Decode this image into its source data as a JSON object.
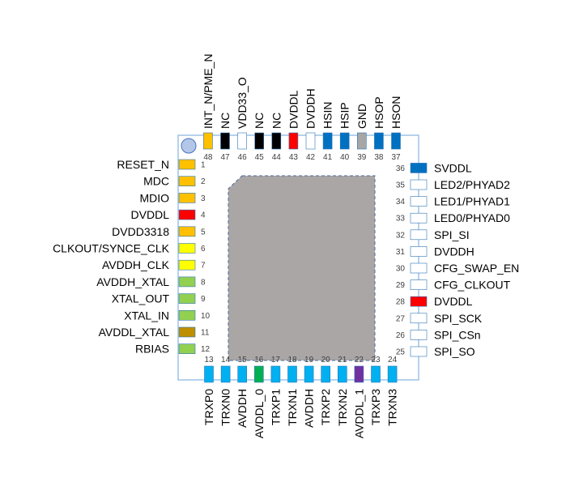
{
  "colors": {
    "package_border": "#9dc3e6",
    "die": "#aaa6a6",
    "die_border": "#4a6a96",
    "dot": "#b4c7e7",
    "pin_border": "#2e75b6",
    "label_text": "#000000",
    "number_text": "#404040"
  },
  "diagram": {
    "left_pins": [
      {
        "num": "1",
        "label": "RESET_N",
        "color": "#ffc000"
      },
      {
        "num": "2",
        "label": "MDC",
        "color": "#ffc000"
      },
      {
        "num": "3",
        "label": "MDIO",
        "color": "#ffc000"
      },
      {
        "num": "4",
        "label": "DVDDL",
        "color": "#ff0000"
      },
      {
        "num": "5",
        "label": "DVDD3318",
        "color": "#ffc000"
      },
      {
        "num": "6",
        "label": "CLKOUT/SYNCE_CLK",
        "color": "#ffff00"
      },
      {
        "num": "7",
        "label": "AVDDH_CLK",
        "color": "#ffff00"
      },
      {
        "num": "8",
        "label": "AVDDH_XTAL",
        "color": "#92d050"
      },
      {
        "num": "9",
        "label": "XTAL_OUT",
        "color": "#92d050"
      },
      {
        "num": "10",
        "label": "XTAL_IN",
        "color": "#92d050"
      },
      {
        "num": "11",
        "label": "AVDDL_XTAL",
        "color": "#bf8f00"
      },
      {
        "num": "12",
        "label": "RBIAS",
        "color": "#92d050"
      }
    ],
    "bottom_pins": [
      {
        "num": "13",
        "label": "TRXP0",
        "color": "#00b0f0"
      },
      {
        "num": "14",
        "label": "TRXN0",
        "color": "#00b0f0"
      },
      {
        "num": "15",
        "label": "AVDDH",
        "color": "#00b0f0"
      },
      {
        "num": "16",
        "label": "AVDDL_0",
        "color": "#00b050"
      },
      {
        "num": "17",
        "label": "TRXP1",
        "color": "#00b0f0"
      },
      {
        "num": "18",
        "label": "TRXN1",
        "color": "#00b0f0"
      },
      {
        "num": "19",
        "label": "AVDDH",
        "color": "#00b0f0"
      },
      {
        "num": "20",
        "label": "TRXP2",
        "color": "#00b0f0"
      },
      {
        "num": "21",
        "label": "TRXN2",
        "color": "#00b0f0"
      },
      {
        "num": "22",
        "label": "AVDDL_1",
        "color": "#7030a0"
      },
      {
        "num": "23",
        "label": "TRXP3",
        "color": "#00b0f0"
      },
      {
        "num": "24",
        "label": "TRXN3",
        "color": "#00b0f0"
      }
    ],
    "right_pins": [
      {
        "num": "25",
        "label": "SPI_SO",
        "color": "#ffffff"
      },
      {
        "num": "26",
        "label": "SPI_CSn",
        "color": "#ffffff"
      },
      {
        "num": "27",
        "label": "SPI_SCK",
        "color": "#ffffff"
      },
      {
        "num": "28",
        "label": "DVDDL",
        "color": "#ff0000"
      },
      {
        "num": "29",
        "label": "CFG_CLKOUT",
        "color": "#ffffff"
      },
      {
        "num": "30",
        "label": "CFG_SWAP_EN",
        "color": "#ffffff"
      },
      {
        "num": "31",
        "label": "DVDDH",
        "color": "#ffffff"
      },
      {
        "num": "32",
        "label": "SPI_SI",
        "color": "#ffffff"
      },
      {
        "num": "33",
        "label": "LED0/PHYAD0",
        "color": "#ffffff"
      },
      {
        "num": "34",
        "label": "LED1/PHYAD1",
        "color": "#ffffff"
      },
      {
        "num": "35",
        "label": "LED2/PHYAD2",
        "color": "#ffffff"
      },
      {
        "num": "36",
        "label": "SVDDL",
        "color": "#0070c0"
      }
    ],
    "top_pins": [
      {
        "num": "37",
        "label": "HSON",
        "color": "#0070c0"
      },
      {
        "num": "38",
        "label": "HSOP",
        "color": "#0070c0"
      },
      {
        "num": "39",
        "label": "GND",
        "color": "#a6a6a6"
      },
      {
        "num": "40",
        "label": "HSIP",
        "color": "#0070c0"
      },
      {
        "num": "41",
        "label": "HSIN",
        "color": "#0070c0"
      },
      {
        "num": "42",
        "label": "DVDDH",
        "color": "#ffffff"
      },
      {
        "num": "43",
        "label": "DVDDL",
        "color": "#ff0000"
      },
      {
        "num": "44",
        "label": "NC",
        "color": "#000000"
      },
      {
        "num": "45",
        "label": "NC",
        "color": "#000000"
      },
      {
        "num": "46",
        "label": "VDD33_O",
        "color": "#ffffff"
      },
      {
        "num": "47",
        "label": "NC",
        "color": "#000000"
      },
      {
        "num": "48",
        "label": "INT_N/PME_N",
        "color": "#ffc000"
      }
    ]
  }
}
